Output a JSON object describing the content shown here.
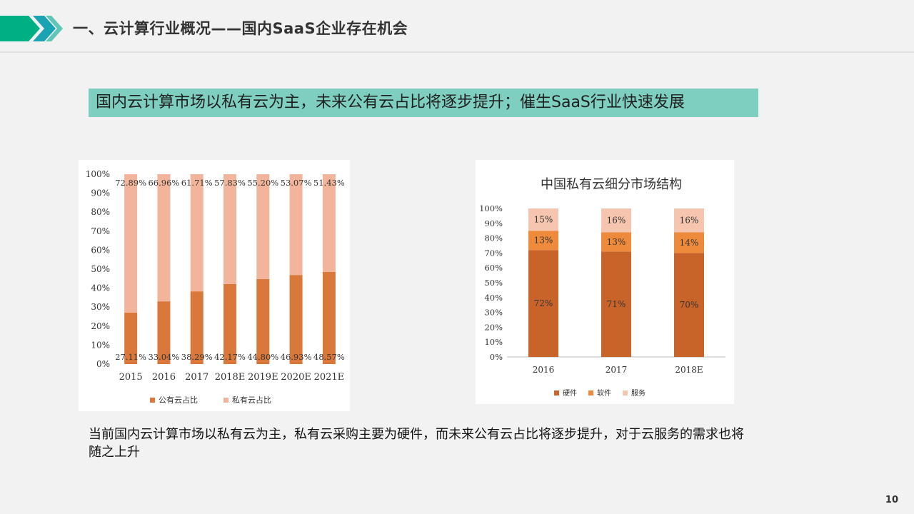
{
  "slide": {
    "title": "一、云计算行业概况——国内SaaS企业存在机会",
    "banner": "国内云计算市场以私有云为主，未来公有云占比将逐步提升；催生SaaS行业快速发展",
    "body_text": "当前国内云计算市场以私有云为主，私有云采购主要为硬件，而未来公有云占比将逐步提升，对于云服务的需求也将随之上升",
    "page_number": "10",
    "colors": {
      "accent_teal": "#7fcfc0",
      "chevron_green": "#00b085",
      "chevron_teal": "#1aa3b3"
    }
  },
  "chart_data": [
    {
      "type": "bar",
      "stacked": true,
      "title": "",
      "categories": [
        "2015",
        "2016",
        "2017",
        "2018E",
        "2019E",
        "2020E",
        "2021E"
      ],
      "series": [
        {
          "name": "公有云占比",
          "values": [
            27.11,
            33.04,
            38.29,
            42.17,
            44.8,
            46.93,
            48.57
          ],
          "labels": [
            "27.11%",
            "33.04%",
            "38.29%",
            "42.17%",
            "44.80%",
            "46.93%",
            "48.57%"
          ],
          "color": "#d9783a"
        },
        {
          "name": "私有云占比",
          "values": [
            72.89,
            66.96,
            61.71,
            57.83,
            55.2,
            53.07,
            51.43
          ],
          "labels": [
            "72.89%",
            "66.96%",
            "61.71%",
            "57.83%",
            "55.20%",
            "53.07%",
            "51.43%"
          ],
          "color": "#f2b49a"
        }
      ],
      "ylim": [
        0,
        100
      ],
      "yticks": [
        "0%",
        "10%",
        "20%",
        "30%",
        "40%",
        "50%",
        "60%",
        "70%",
        "80%",
        "90%",
        "100%"
      ],
      "legend": "bottom"
    },
    {
      "type": "bar",
      "stacked": true,
      "title": "中国私有云细分市场结构",
      "categories": [
        "2016",
        "2017",
        "2018E"
      ],
      "series": [
        {
          "name": "硬件",
          "values": [
            72,
            71,
            70
          ],
          "labels": [
            "72%",
            "71%",
            "70%"
          ],
          "color": "#c8632a"
        },
        {
          "name": "软件",
          "values": [
            13,
            13,
            14
          ],
          "labels": [
            "13%",
            "13%",
            "14%"
          ],
          "color": "#ee8a3c"
        },
        {
          "name": "服务",
          "values": [
            15,
            16,
            16
          ],
          "labels": [
            "15%",
            "16%",
            "16%"
          ],
          "color": "#f6c5b0"
        }
      ],
      "ylim": [
        0,
        100
      ],
      "yticks": [
        "0%",
        "10%",
        "20%",
        "30%",
        "40%",
        "50%",
        "60%",
        "70%",
        "80%",
        "90%",
        "100%"
      ],
      "legend": "bottom"
    }
  ]
}
